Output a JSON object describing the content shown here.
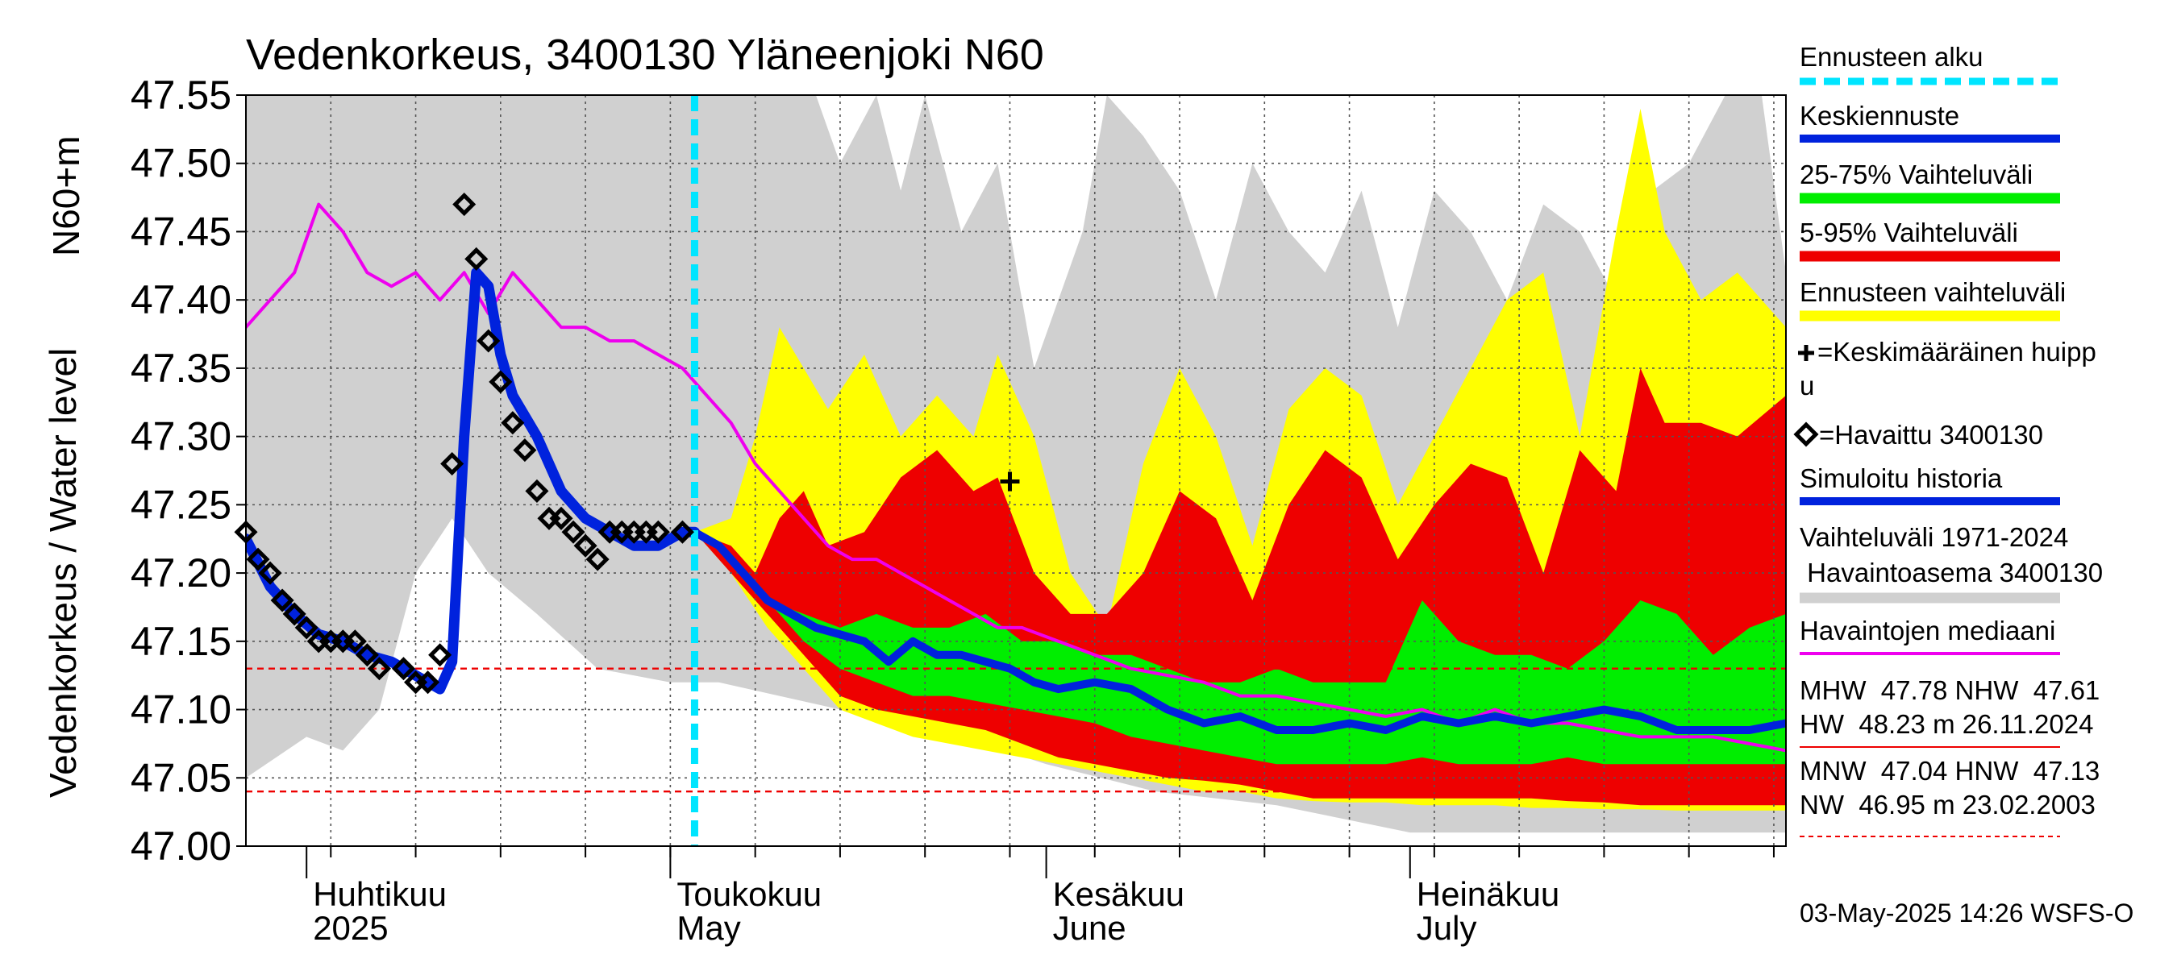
{
  "chart_data": {
    "type": "line",
    "title": "Vedenkorkeus, 3400130 Yläneenjoki N60",
    "ylabel": "Vedenkorkeus / Water level",
    "ylabel_unit": "N60+m",
    "ylim": [
      47.0,
      47.55
    ],
    "yticks": [
      "47.55",
      "47.50",
      "47.45",
      "47.40",
      "47.35",
      "47.30",
      "47.25",
      "47.20",
      "47.15",
      "47.10",
      "47.05",
      "47.00"
    ],
    "xlim": [
      "2025-03-27",
      "2025-08-01"
    ],
    "xticks_months": [
      {
        "fi": "Huhtikuu",
        "en": "2025",
        "date": "2025-04-01"
      },
      {
        "fi": "Toukokuu",
        "en": "May",
        "date": "2025-05-01"
      },
      {
        "fi": "Kesäkuu",
        "en": "June",
        "date": "2025-06-01"
      },
      {
        "fi": "Heinäkuu",
        "en": "July",
        "date": "2025-07-01"
      }
    ],
    "forecast_start": "2025-05-03",
    "reference_lines": {
      "HNW": 47.13,
      "MNW": 47.04
    },
    "legend": {
      "forecast_start": "Ennusteen alku",
      "mean_forecast": "Keskiennuste",
      "range_25_75": "25-75% Vaihteluväli",
      "range_5_95": "5-95% Vaihteluväli",
      "forecast_range": "Ennusteen vaihteluväli",
      "mean_peak": "=Keskimääräinen huipp",
      "mean_peak_cont": "u",
      "observed": "=Havaittu 3400130",
      "simulated": "Simuloitu historia",
      "hist_range_1": "Vaihteluväli 1971-2024",
      "hist_range_2": " Havaintoasema 3400130",
      "median": "Havaintojen mediaani",
      "stats_1": "MHW  47.78 NHW  47.61",
      "stats_2": "HW  48.23 m 26.11.2024",
      "stats_3": "MNW  47.04 HNW  47.13",
      "stats_4": "NW  46.95 m 23.02.2003"
    },
    "colors": {
      "forecast_start": "#00e5ff",
      "mean_forecast": "#0022dd",
      "range_25_75": "#00ee00",
      "range_5_95": "#ee0000",
      "forecast_range": "#ffff00",
      "hist_range": "#d0d0d0",
      "median": "#ee00ee",
      "reference": "#ee0000"
    },
    "footer": "03-May-2025 14:26 WSFS-O",
    "peak_marker": {
      "date": "2025-05-29",
      "value": 47.267
    },
    "observed": {
      "dates": [
        "2025-03-27",
        "2025-03-28",
        "2025-03-29",
        "2025-03-30",
        "2025-03-31",
        "2025-04-01",
        "2025-04-02",
        "2025-04-03",
        "2025-04-04",
        "2025-04-05",
        "2025-04-06",
        "2025-04-07",
        "2025-04-09",
        "2025-04-10",
        "2025-04-11",
        "2025-04-12",
        "2025-04-13",
        "2025-04-14",
        "2025-04-15",
        "2025-04-16",
        "2025-04-17",
        "2025-04-18",
        "2025-04-19",
        "2025-04-20",
        "2025-04-21",
        "2025-04-22",
        "2025-04-23",
        "2025-04-24",
        "2025-04-25",
        "2025-04-26",
        "2025-04-27",
        "2025-04-28",
        "2025-04-29",
        "2025-04-30",
        "2025-05-02"
      ],
      "values": [
        47.23,
        47.21,
        47.2,
        47.18,
        47.17,
        47.16,
        47.15,
        47.15,
        47.15,
        47.15,
        47.14,
        47.13,
        47.13,
        47.12,
        47.12,
        47.14,
        47.28,
        47.47,
        47.43,
        47.37,
        47.34,
        47.31,
        47.29,
        47.26,
        47.24,
        47.24,
        47.23,
        47.22,
        47.21,
        47.23,
        47.23,
        47.23,
        47.23,
        47.23,
        47.23
      ]
    },
    "series": [
      {
        "key": "hist_max",
        "dates": [
          "2025-03-27",
          "2025-04-01",
          "2025-04-05",
          "2025-04-10",
          "2025-04-15",
          "2025-04-20",
          "2025-04-25",
          "2025-05-01",
          "2025-05-05",
          "2025-05-09",
          "2025-05-11",
          "2025-05-13",
          "2025-05-15",
          "2025-05-18",
          "2025-05-20",
          "2025-05-22",
          "2025-05-25",
          "2025-05-28",
          "2025-05-31",
          "2025-06-02",
          "2025-06-04",
          "2025-06-06",
          "2025-06-09",
          "2025-06-12",
          "2025-06-15",
          "2025-06-18",
          "2025-06-21",
          "2025-06-24",
          "2025-06-27",
          "2025-06-30",
          "2025-07-03",
          "2025-07-06",
          "2025-07-09",
          "2025-07-12",
          "2025-07-15",
          "2025-07-18",
          "2025-07-21",
          "2025-07-24",
          "2025-07-27",
          "2025-07-30",
          "2025-08-01"
        ],
        "values": [
          47.55,
          47.55,
          47.55,
          47.55,
          47.55,
          47.55,
          47.55,
          47.55,
          47.55,
          47.55,
          47.55,
          47.55,
          47.5,
          47.55,
          47.48,
          47.55,
          47.45,
          47.5,
          47.35,
          47.4,
          47.45,
          47.55,
          47.52,
          47.48,
          47.4,
          47.5,
          47.45,
          47.42,
          47.48,
          47.38,
          47.48,
          47.45,
          47.4,
          47.47,
          47.45,
          47.4,
          47.48,
          47.5,
          47.55,
          47.55,
          47.42
        ]
      },
      {
        "key": "hist_min",
        "dates": [
          "2025-03-27",
          "2025-04-01",
          "2025-04-04",
          "2025-04-07",
          "2025-04-10",
          "2025-04-13",
          "2025-04-16",
          "2025-04-20",
          "2025-04-25",
          "2025-05-01",
          "2025-05-05",
          "2025-05-10",
          "2025-05-15",
          "2025-05-20",
          "2025-05-25",
          "2025-06-01",
          "2025-06-10",
          "2025-06-20",
          "2025-07-01",
          "2025-07-10",
          "2025-07-20",
          "2025-08-01"
        ],
        "values": [
          47.05,
          47.08,
          47.07,
          47.1,
          47.2,
          47.24,
          47.2,
          47.17,
          47.13,
          47.12,
          47.12,
          47.11,
          47.1,
          47.09,
          47.08,
          47.06,
          47.04,
          47.03,
          47.01,
          47.01,
          47.01,
          47.01
        ]
      },
      {
        "key": "fc_max",
        "dates": [
          "2025-05-03",
          "2025-05-06",
          "2025-05-08",
          "2025-05-10",
          "2025-05-12",
          "2025-05-14",
          "2025-05-17",
          "2025-05-20",
          "2025-05-23",
          "2025-05-26",
          "2025-05-28",
          "2025-05-31",
          "2025-06-03",
          "2025-06-06",
          "2025-06-09",
          "2025-06-12",
          "2025-06-15",
          "2025-06-18",
          "2025-06-21",
          "2025-06-24",
          "2025-06-27",
          "2025-06-30",
          "2025-07-03",
          "2025-07-06",
          "2025-07-09",
          "2025-07-12",
          "2025-07-15",
          "2025-07-18",
          "2025-07-20",
          "2025-07-22",
          "2025-07-25",
          "2025-07-28",
          "2025-08-01"
        ],
        "values": [
          47.23,
          47.24,
          47.3,
          47.38,
          47.35,
          47.32,
          47.36,
          47.3,
          47.33,
          47.3,
          47.36,
          47.3,
          47.2,
          47.16,
          47.28,
          47.35,
          47.3,
          47.22,
          47.32,
          47.35,
          47.33,
          47.25,
          47.3,
          47.35,
          47.4,
          47.42,
          47.3,
          47.45,
          47.54,
          47.45,
          47.4,
          47.42,
          47.38
        ]
      },
      {
        "key": "p95",
        "dates": [
          "2025-05-03",
          "2025-05-06",
          "2025-05-08",
          "2025-05-10",
          "2025-05-12",
          "2025-05-14",
          "2025-05-17",
          "2025-05-20",
          "2025-05-23",
          "2025-05-26",
          "2025-05-28",
          "2025-05-31",
          "2025-06-03",
          "2025-06-06",
          "2025-06-09",
          "2025-06-12",
          "2025-06-15",
          "2025-06-18",
          "2025-06-21",
          "2025-06-24",
          "2025-06-27",
          "2025-06-30",
          "2025-07-03",
          "2025-07-06",
          "2025-07-09",
          "2025-07-12",
          "2025-07-15",
          "2025-07-18",
          "2025-07-20",
          "2025-07-22",
          "2025-07-25",
          "2025-07-28",
          "2025-08-01"
        ],
        "values": [
          47.23,
          47.22,
          47.2,
          47.24,
          47.26,
          47.22,
          47.23,
          47.27,
          47.29,
          47.26,
          47.27,
          47.2,
          47.17,
          47.17,
          47.2,
          47.26,
          47.24,
          47.18,
          47.25,
          47.29,
          47.27,
          47.21,
          47.25,
          47.28,
          47.27,
          47.2,
          47.29,
          47.26,
          47.35,
          47.31,
          47.31,
          47.3,
          47.33
        ]
      },
      {
        "key": "p75",
        "dates": [
          "2025-05-03",
          "2025-05-06",
          "2025-05-09",
          "2025-05-12",
          "2025-05-15",
          "2025-05-18",
          "2025-05-21",
          "2025-05-24",
          "2025-05-27",
          "2025-05-30",
          "2025-06-02",
          "2025-06-05",
          "2025-06-08",
          "2025-06-11",
          "2025-06-14",
          "2025-06-17",
          "2025-06-20",
          "2025-06-23",
          "2025-06-26",
          "2025-06-29",
          "2025-07-02",
          "2025-07-05",
          "2025-07-08",
          "2025-07-11",
          "2025-07-14",
          "2025-07-17",
          "2025-07-20",
          "2025-07-23",
          "2025-07-26",
          "2025-07-29",
          "2025-08-01"
        ],
        "values": [
          47.23,
          47.21,
          47.18,
          47.17,
          47.16,
          47.17,
          47.16,
          47.16,
          47.17,
          47.15,
          47.15,
          47.14,
          47.14,
          47.13,
          47.12,
          47.12,
          47.13,
          47.12,
          47.12,
          47.12,
          47.18,
          47.15,
          47.14,
          47.14,
          47.13,
          47.15,
          47.18,
          47.17,
          47.14,
          47.16,
          47.17
        ]
      },
      {
        "key": "mean",
        "dates": [
          "2025-05-03",
          "2025-05-05",
          "2025-05-07",
          "2025-05-09",
          "2025-05-11",
          "2025-05-13",
          "2025-05-15",
          "2025-05-17",
          "2025-05-19",
          "2025-05-21",
          "2025-05-23",
          "2025-05-25",
          "2025-05-27",
          "2025-05-29",
          "2025-05-31",
          "2025-06-02",
          "2025-06-05",
          "2025-06-08",
          "2025-06-11",
          "2025-06-14",
          "2025-06-17",
          "2025-06-20",
          "2025-06-23",
          "2025-06-26",
          "2025-06-29",
          "2025-07-02",
          "2025-07-05",
          "2025-07-08",
          "2025-07-11",
          "2025-07-14",
          "2025-07-17",
          "2025-07-20",
          "2025-07-23",
          "2025-07-26",
          "2025-07-29",
          "2025-08-01"
        ],
        "values": [
          47.23,
          47.22,
          47.2,
          47.18,
          47.17,
          47.16,
          47.155,
          47.15,
          47.135,
          47.15,
          47.14,
          47.14,
          47.135,
          47.13,
          47.12,
          47.115,
          47.12,
          47.115,
          47.1,
          47.09,
          47.095,
          47.085,
          47.085,
          47.09,
          47.085,
          47.095,
          47.09,
          47.095,
          47.09,
          47.095,
          47.1,
          47.095,
          47.085,
          47.085,
          47.085,
          47.09
        ]
      },
      {
        "key": "p25",
        "dates": [
          "2025-05-03",
          "2025-05-06",
          "2025-05-09",
          "2025-05-12",
          "2025-05-15",
          "2025-05-18",
          "2025-05-21",
          "2025-05-24",
          "2025-05-27",
          "2025-05-30",
          "2025-06-02",
          "2025-06-05",
          "2025-06-08",
          "2025-06-11",
          "2025-06-14",
          "2025-06-17",
          "2025-06-20",
          "2025-06-23",
          "2025-06-26",
          "2025-06-29",
          "2025-07-02",
          "2025-07-05",
          "2025-07-08",
          "2025-07-11",
          "2025-07-14",
          "2025-07-17",
          "2025-07-20",
          "2025-07-23",
          "2025-07-26",
          "2025-07-29",
          "2025-08-01"
        ],
        "values": [
          47.23,
          47.21,
          47.18,
          47.15,
          47.13,
          47.12,
          47.11,
          47.11,
          47.105,
          47.1,
          47.095,
          47.09,
          47.08,
          47.075,
          47.07,
          47.065,
          47.06,
          47.06,
          47.06,
          47.06,
          47.065,
          47.06,
          47.06,
          47.06,
          47.065,
          47.06,
          47.06,
          47.06,
          47.06,
          47.06,
          47.06
        ]
      },
      {
        "key": "p5",
        "dates": [
          "2025-05-03",
          "2025-05-06",
          "2025-05-09",
          "2025-05-12",
          "2025-05-15",
          "2025-05-18",
          "2025-05-21",
          "2025-05-24",
          "2025-05-27",
          "2025-05-30",
          "2025-06-02",
          "2025-06-05",
          "2025-06-08",
          "2025-06-11",
          "2025-06-14",
          "2025-06-17",
          "2025-06-20",
          "2025-06-23",
          "2025-06-26",
          "2025-06-29",
          "2025-07-02",
          "2025-07-05",
          "2025-07-08",
          "2025-07-11",
          "2025-07-14",
          "2025-07-17",
          "2025-07-20",
          "2025-07-23",
          "2025-07-26",
          "2025-07-29",
          "2025-08-01"
        ],
        "values": [
          47.23,
          47.2,
          47.17,
          47.14,
          47.11,
          47.1,
          47.095,
          47.09,
          47.085,
          47.075,
          47.065,
          47.06,
          47.055,
          47.05,
          47.048,
          47.045,
          47.04,
          47.035,
          47.035,
          47.035,
          47.035,
          47.035,
          47.035,
          47.035,
          47.033,
          47.032,
          47.03,
          47.03,
          47.03,
          47.03,
          47.03
        ]
      },
      {
        "key": "fc_min",
        "dates": [
          "2025-05-03",
          "2025-05-06",
          "2025-05-09",
          "2025-05-12",
          "2025-05-15",
          "2025-05-18",
          "2025-05-21",
          "2025-05-24",
          "2025-05-27",
          "2025-05-30",
          "2025-06-02",
          "2025-06-05",
          "2025-06-08",
          "2025-06-11",
          "2025-06-14",
          "2025-06-17",
          "2025-06-20",
          "2025-06-23",
          "2025-06-26",
          "2025-06-29",
          "2025-07-02",
          "2025-07-05",
          "2025-07-08",
          "2025-07-11",
          "2025-07-14",
          "2025-07-17",
          "2025-07-20",
          "2025-07-23",
          "2025-07-26",
          "2025-07-29",
          "2025-08-01"
        ],
        "values": [
          47.23,
          47.2,
          47.16,
          47.13,
          47.1,
          47.09,
          47.08,
          47.075,
          47.07,
          47.065,
          47.06,
          47.055,
          47.05,
          47.045,
          47.04,
          47.04,
          47.035,
          47.033,
          47.032,
          47.032,
          47.03,
          47.03,
          47.03,
          47.028,
          47.028,
          47.027,
          47.027,
          47.026,
          47.026,
          47.026,
          47.026
        ]
      },
      {
        "key": "median",
        "dates": [
          "2025-03-27",
          "2025-03-29",
          "2025-03-31",
          "2025-04-02",
          "2025-04-04",
          "2025-04-06",
          "2025-04-08",
          "2025-04-10",
          "2025-04-12",
          "2025-04-14",
          "2025-04-16",
          "2025-04-18",
          "2025-04-20",
          "2025-04-22",
          "2025-04-24",
          "2025-04-26",
          "2025-04-28",
          "2025-04-30",
          "2025-05-02",
          "2025-05-04",
          "2025-05-06",
          "2025-05-08",
          "2025-05-10",
          "2025-05-12",
          "2025-05-14",
          "2025-05-16",
          "2025-05-18",
          "2025-05-20",
          "2025-05-22",
          "2025-05-24",
          "2025-05-26",
          "2025-05-28",
          "2025-05-30",
          "2025-06-02",
          "2025-06-05",
          "2025-06-08",
          "2025-06-11",
          "2025-06-14",
          "2025-06-17",
          "2025-06-20",
          "2025-06-23",
          "2025-06-26",
          "2025-06-29",
          "2025-07-02",
          "2025-07-05",
          "2025-07-08",
          "2025-07-11",
          "2025-07-14",
          "2025-07-17",
          "2025-07-20",
          "2025-07-23",
          "2025-07-26",
          "2025-07-29",
          "2025-08-01"
        ],
        "values": [
          47.38,
          47.4,
          47.42,
          47.47,
          47.45,
          47.42,
          47.41,
          47.42,
          47.4,
          47.42,
          47.39,
          47.42,
          47.4,
          47.38,
          47.38,
          47.37,
          47.37,
          47.36,
          47.35,
          47.33,
          47.31,
          47.28,
          47.26,
          47.24,
          47.22,
          47.21,
          47.21,
          47.2,
          47.19,
          47.18,
          47.17,
          47.16,
          47.16,
          47.15,
          47.14,
          47.13,
          47.125,
          47.12,
          47.11,
          47.11,
          47.105,
          47.1,
          47.095,
          47.1,
          47.09,
          47.1,
          47.09,
          47.09,
          47.085,
          47.08,
          47.08,
          47.08,
          47.075,
          47.07
        ]
      },
      {
        "key": "simulated",
        "dates": [
          "2025-03-27",
          "2025-03-29",
          "2025-03-31",
          "2025-04-02",
          "2025-04-04",
          "2025-04-06",
          "2025-04-08",
          "2025-04-10",
          "2025-04-12",
          "2025-04-13",
          "2025-04-14",
          "2025-04-15",
          "2025-04-16",
          "2025-04-17",
          "2025-04-18",
          "2025-04-20",
          "2025-04-22",
          "2025-04-24",
          "2025-04-26",
          "2025-04-28",
          "2025-04-30",
          "2025-05-02",
          "2025-05-03"
        ],
        "values": [
          47.225,
          47.19,
          47.17,
          47.155,
          47.15,
          47.14,
          47.135,
          47.125,
          47.115,
          47.135,
          47.3,
          47.42,
          47.41,
          47.36,
          47.33,
          47.3,
          47.26,
          47.24,
          47.23,
          47.22,
          47.22,
          47.23,
          47.23
        ]
      }
    ]
  }
}
